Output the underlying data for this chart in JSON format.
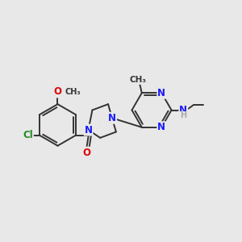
{
  "background_color": "#e8e8e8",
  "bond_color": "#333333",
  "bond_width": 1.4,
  "atom_colors": {
    "C": "#333333",
    "N": "#1a1aff",
    "O": "#dd0000",
    "Cl": "#228B22",
    "H": "#aaaaaa"
  },
  "font_size": 7.5,
  "figsize": [
    3.0,
    3.0
  ],
  "dpi": 100,
  "xlim": [
    0,
    12
  ],
  "ylim": [
    0,
    12
  ]
}
